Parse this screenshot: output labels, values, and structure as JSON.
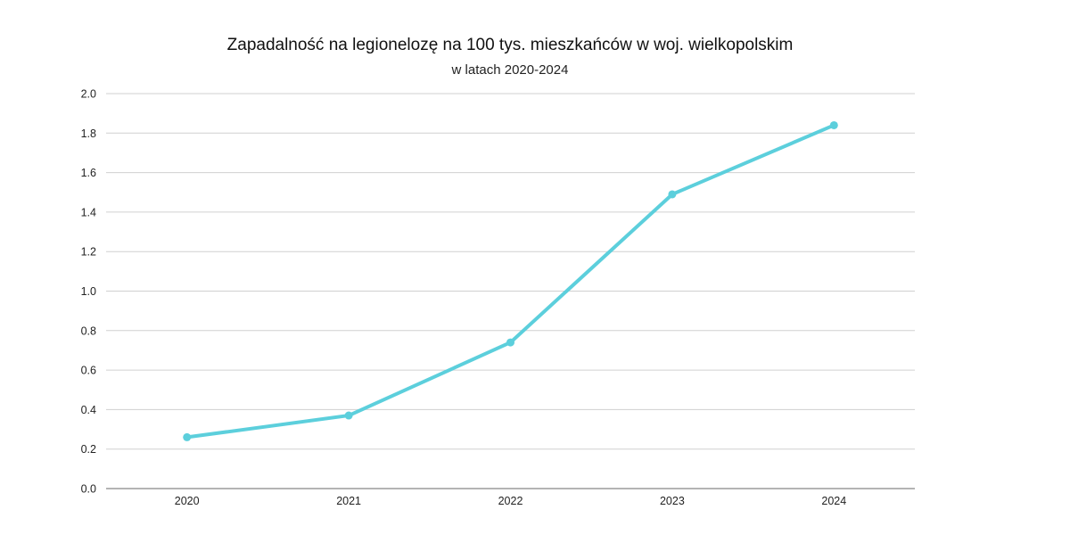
{
  "chart_data": {
    "type": "line",
    "title": "Zapadalność na legionelozę na 100 tys. mieszkańców w woj. wielkopolskim",
    "subtitle": "w latach 2020-2024",
    "categories": [
      "2020",
      "2021",
      "2022",
      "2023",
      "2024"
    ],
    "series": [
      {
        "values": [
          0.26,
          0.37,
          0.74,
          1.49,
          1.84
        ],
        "color": "#5ccfdc"
      }
    ],
    "ylim": [
      0,
      2.0
    ],
    "yticks": [
      "0.0",
      "0.2",
      "0.4",
      "0.6",
      "0.8",
      "1.0",
      "1.2",
      "1.4",
      "1.6",
      "1.8",
      "2.0"
    ],
    "grid": true,
    "gridColor": "#d0d0d0",
    "axisColor": "#888888"
  }
}
